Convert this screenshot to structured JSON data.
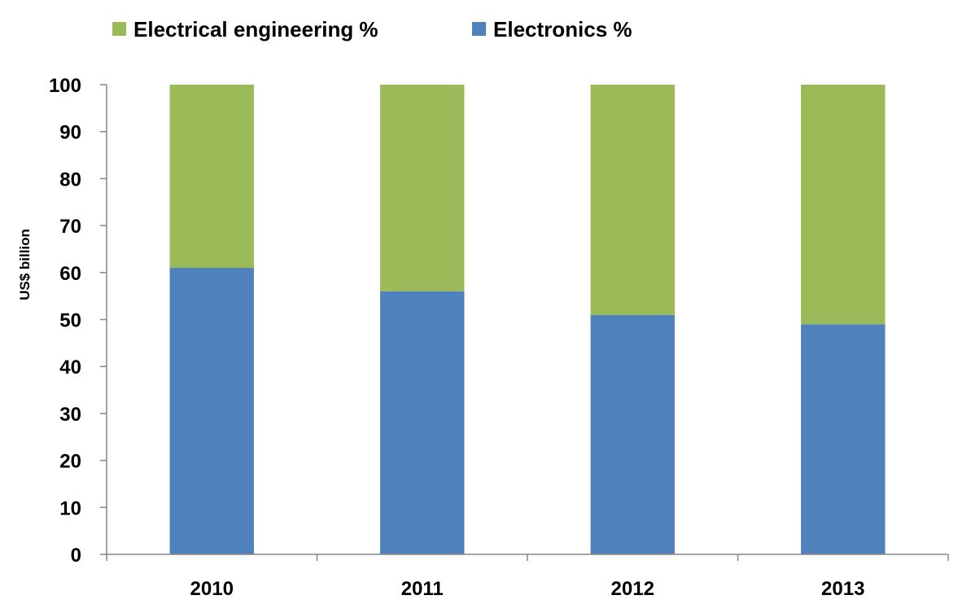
{
  "chart_data": {
    "type": "bar",
    "stacked": true,
    "title": "",
    "xlabel": "",
    "ylabel": "US$ billion",
    "ylim": [
      0,
      100
    ],
    "yticks": [
      "0",
      "10",
      "20",
      "30",
      "40",
      "50",
      "60",
      "70",
      "80",
      "90",
      "100"
    ],
    "categories": [
      "2010",
      "2011",
      "2012",
      "2013"
    ],
    "series": [
      {
        "name": "Electronics %",
        "color": "#4F81BD",
        "values": [
          61,
          56,
          51,
          49
        ]
      },
      {
        "name": "Electrical engineering %",
        "color": "#9BBB59",
        "values": [
          39,
          44,
          49,
          51
        ]
      }
    ],
    "legend": {
      "position": "top",
      "items": [
        {
          "label": "Electrical engineering %",
          "color": "#9BBB59"
        },
        {
          "label": "Electronics %",
          "color": "#4F81BD"
        }
      ]
    },
    "grid": false
  }
}
